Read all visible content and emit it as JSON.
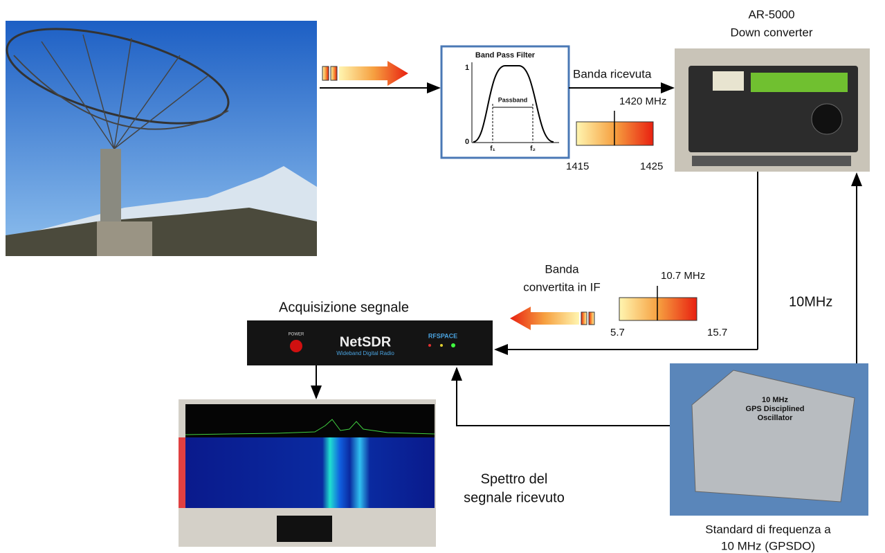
{
  "filter": {
    "title": "Band Pass Filter",
    "y_top": "1",
    "y_bottom": "0",
    "passband": "Passband",
    "f1": "f₁",
    "f2": "f₂"
  },
  "received_band": {
    "label": "Banda ricevuta",
    "center": "1420 MHz",
    "low": "1415",
    "high": "1425"
  },
  "downconverter": {
    "lines": [
      "AR-5000",
      "Down converter"
    ]
  },
  "if_band": {
    "label_lines": [
      "Banda",
      "convertita in IF"
    ],
    "center": "10.7 MHz",
    "low": "5.7",
    "high": "15.7"
  },
  "acquisition": {
    "label": "Acquisizione segnale",
    "device": "NetSDR",
    "device_subtitle": "Wideband Digital Radio",
    "brand": "RFSPACE",
    "power": "POWER"
  },
  "reference": {
    "label": "10MHz",
    "lines": [
      "Standard di frequenza a",
      "10 MHz (GPSDO)"
    ],
    "device_lines": [
      "10 MHz",
      "GPS Disciplined",
      "Oscillator"
    ]
  },
  "spectrum": {
    "lines": [
      "Spettro del",
      "segnale ricevuto"
    ]
  }
}
